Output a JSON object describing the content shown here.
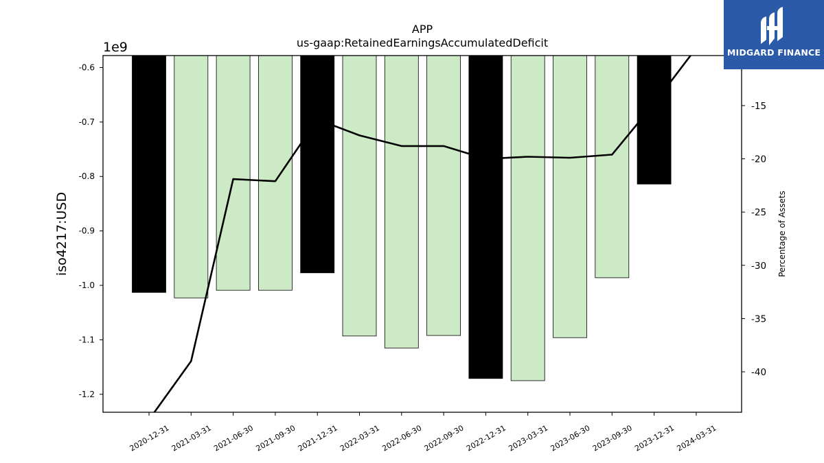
{
  "chart_data": {
    "type": "bar",
    "title": "APP",
    "subtitle": "us-gaap:RetainedEarningsAccumulatedDeficit",
    "ylabel": "iso4217:USD",
    "y_offset_label": "1e9",
    "y2label": "Percentage of Assets",
    "categories": [
      "2020-12-31",
      "2021-03-31",
      "2021-06-30",
      "2021-09-30",
      "2021-12-31",
      "2022-03-31",
      "2022-06-30",
      "2022-09-30",
      "2022-12-31",
      "2023-03-31",
      "2023-06-30",
      "2023-09-30",
      "2023-12-31",
      "2024-03-31"
    ],
    "series": [
      {
        "axis": "left",
        "type": "bar",
        "values": [
          -1.013,
          -1.023,
          -1.009,
          -1.009,
          -0.977,
          -1.093,
          -1.115,
          -1.092,
          -1.171,
          -1.175,
          -1.096,
          -0.986,
          -0.814,
          null
        ],
        "highlight": [
          true,
          false,
          false,
          false,
          true,
          false,
          false,
          false,
          true,
          false,
          false,
          false,
          true,
          false
        ],
        "color_highlight": "#000000",
        "color_normal": "#cdeac6"
      },
      {
        "axis": "right",
        "type": "line",
        "values": [
          -44.5,
          -39.0,
          -21.9,
          -22.1,
          -16.3,
          -17.8,
          -18.8,
          -18.8,
          -20.0,
          -19.8,
          -19.9,
          -19.6,
          -14.8,
          -9.6
        ],
        "color": "#000000"
      }
    ],
    "yticks": [
      "-0.6",
      "-0.7",
      "-0.8",
      "-0.9",
      "-1.0",
      "-1.1",
      "-1.2"
    ],
    "ytick_values": [
      -0.6,
      -0.7,
      -0.8,
      -0.9,
      -1.0,
      -1.1,
      -1.2
    ],
    "ylim": [
      -1.233,
      -0.578
    ],
    "y2ticks": [
      "-15",
      "-20",
      "-25",
      "-30",
      "-35",
      "-40"
    ],
    "y2tick_values": [
      -15,
      -20,
      -25,
      -30,
      -35,
      -40
    ],
    "y2lim": [
      -43.8,
      -10.3
    ]
  },
  "logo": {
    "text": "MIDGARD FINANCE"
  }
}
